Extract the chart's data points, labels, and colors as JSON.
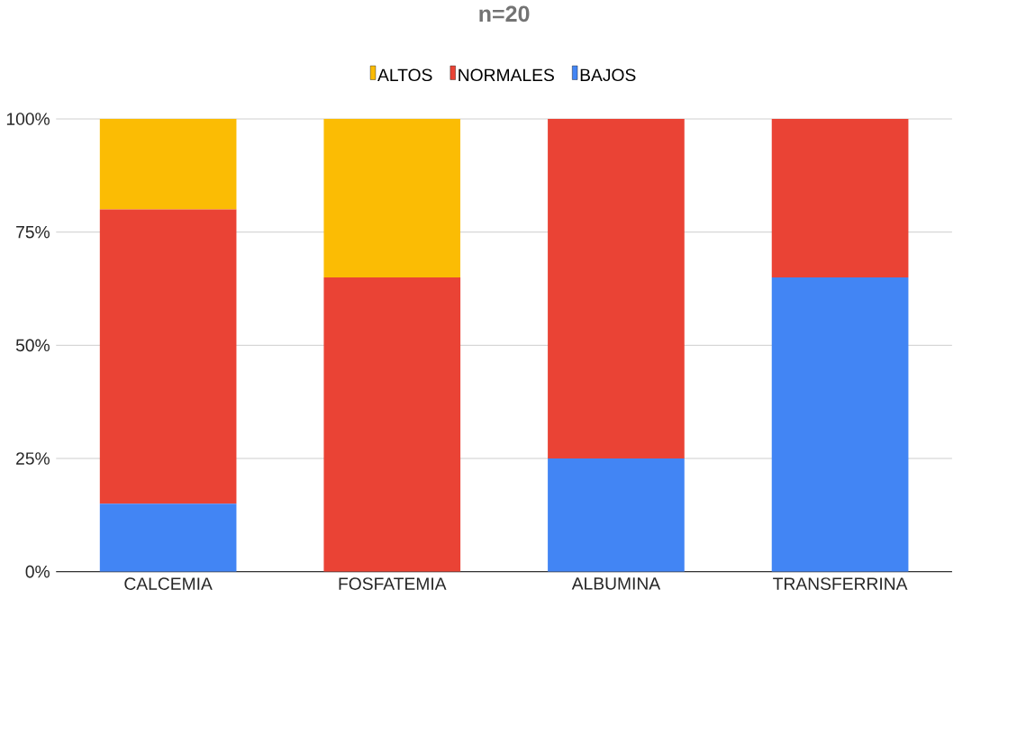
{
  "chart_data": {
    "type": "bar",
    "stacked": true,
    "title": "n=20",
    "categories": [
      "CALCEMIA",
      "FOSFATEMIA",
      "ALBUMINA",
      "TRANSFERRINA"
    ],
    "series": [
      {
        "name": "BAJOS",
        "color": "#4285f4",
        "values": [
          15,
          0,
          25,
          65
        ]
      },
      {
        "name": "NORMALES",
        "color": "#ea4335",
        "values": [
          65,
          65,
          75,
          35
        ]
      },
      {
        "name": "ALTOS",
        "color": "#fbbc04",
        "values": [
          20,
          35,
          0,
          0
        ]
      }
    ],
    "ylim": [
      0,
      100
    ],
    "yticks": [
      {
        "value": 0,
        "label": "0%"
      },
      {
        "value": 25,
        "label": "25%"
      },
      {
        "value": 50,
        "label": "50%"
      },
      {
        "value": 75,
        "label": "75%"
      },
      {
        "value": 100,
        "label": "100%"
      }
    ],
    "grid": "y",
    "legend": "top"
  }
}
